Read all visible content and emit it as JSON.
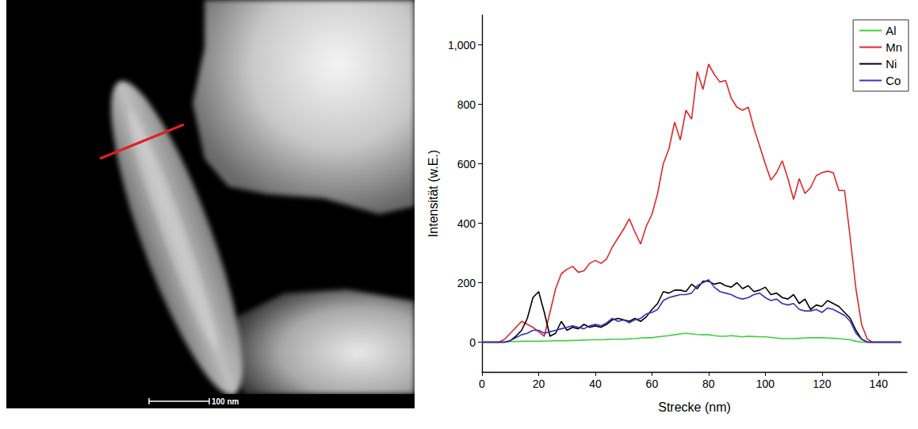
{
  "chart_data": {
    "type": "line",
    "x_label": "Strecke (nm)",
    "y_label": "Intensität (w.E.)",
    "x": [
      0,
      2,
      4,
      6,
      8,
      10,
      12,
      14,
      16,
      18,
      20,
      22,
      24,
      26,
      28,
      30,
      32,
      34,
      36,
      38,
      40,
      42,
      44,
      46,
      48,
      50,
      52,
      54,
      56,
      58,
      60,
      62,
      64,
      66,
      68,
      70,
      72,
      74,
      76,
      78,
      80,
      82,
      84,
      86,
      88,
      90,
      92,
      94,
      96,
      98,
      100,
      102,
      104,
      106,
      108,
      110,
      112,
      114,
      116,
      118,
      120,
      122,
      124,
      126,
      128,
      130,
      132,
      134,
      136,
      138,
      140,
      142,
      144,
      146,
      148
    ],
    "series": [
      {
        "name": "Al",
        "color": "#3fcf3f",
        "values": [
          0,
          0,
          0,
          0,
          0,
          2,
          2,
          3,
          3,
          3,
          3,
          4,
          4,
          5,
          5,
          5,
          6,
          6,
          7,
          8,
          8,
          8,
          9,
          10,
          10,
          10,
          11,
          12,
          14,
          15,
          15,
          18,
          20,
          22,
          25,
          28,
          30,
          28,
          26,
          25,
          25,
          22,
          20,
          20,
          22,
          20,
          18,
          20,
          19,
          18,
          18,
          16,
          14,
          12,
          12,
          12,
          13,
          14,
          15,
          15,
          15,
          14,
          13,
          12,
          10,
          8,
          3,
          0,
          0,
          0,
          0,
          0,
          0,
          0,
          0
        ]
      },
      {
        "name": "Mn",
        "color": "#e02828",
        "values": [
          0,
          0,
          0,
          0,
          10,
          30,
          50,
          70,
          60,
          50,
          35,
          20,
          100,
          180,
          230,
          245,
          255,
          235,
          240,
          265,
          275,
          265,
          280,
          320,
          350,
          380,
          415,
          370,
          330,
          390,
          430,
          500,
          600,
          650,
          740,
          680,
          780,
          750,
          910,
          850,
          935,
          900,
          875,
          880,
          820,
          790,
          780,
          790,
          720,
          660,
          600,
          545,
          570,
          610,
          550,
          480,
          550,
          500,
          520,
          560,
          570,
          575,
          570,
          510,
          510,
          350,
          180,
          60,
          10,
          0,
          0,
          0,
          0,
          0,
          0
        ]
      },
      {
        "name": "Ni",
        "color": "#000000",
        "values": [
          0,
          0,
          0,
          0,
          0,
          5,
          20,
          40,
          80,
          150,
          170,
          100,
          20,
          30,
          70,
          40,
          50,
          45,
          60,
          50,
          55,
          50,
          60,
          75,
          80,
          75,
          70,
          80,
          70,
          85,
          110,
          130,
          170,
          165,
          175,
          175,
          170,
          195,
          180,
          205,
          205,
          195,
          200,
          190,
          185,
          200,
          180,
          190,
          170,
          175,
          185,
          160,
          165,
          150,
          145,
          160,
          130,
          145,
          110,
          125,
          120,
          140,
          130,
          120,
          100,
          80,
          40,
          10,
          0,
          0,
          0,
          0,
          0,
          0,
          0
        ]
      },
      {
        "name": "Co",
        "color": "#3434c4",
        "values": [
          0,
          0,
          0,
          0,
          0,
          5,
          15,
          25,
          30,
          40,
          40,
          30,
          35,
          40,
          45,
          50,
          55,
          50,
          45,
          55,
          60,
          55,
          65,
          80,
          70,
          75,
          65,
          75,
          80,
          95,
          100,
          110,
          140,
          150,
          155,
          160,
          160,
          165,
          190,
          200,
          210,
          185,
          170,
          165,
          160,
          150,
          145,
          150,
          160,
          165,
          150,
          140,
          145,
          130,
          125,
          130,
          110,
          105,
          105,
          110,
          100,
          115,
          110,
          100,
          90,
          70,
          30,
          10,
          0,
          0,
          0,
          0,
          0,
          0,
          0
        ]
      }
    ],
    "xlim": [
      0,
      150
    ],
    "xticks": [
      0,
      20,
      40,
      60,
      80,
      100,
      120,
      140
    ],
    "ylim": [
      -100,
      1100
    ],
    "yticks": [
      0,
      200,
      400,
      600,
      800,
      1000
    ],
    "grid": false,
    "legend": "upper right"
  },
  "micrograph": {
    "scale_bar_label": "100 nm"
  }
}
